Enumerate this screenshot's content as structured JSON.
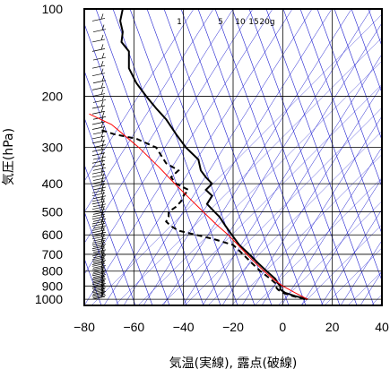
{
  "chart_data": {
    "type": "line",
    "title": "",
    "xlabel": "気温(実線), 露点(破線)",
    "ylabel": "気圧(hPa)",
    "xlim": [
      -80,
      40
    ],
    "ylim": [
      1050,
      100
    ],
    "y_scale": "log",
    "x_ticks": [
      -80,
      -60,
      -40,
      -20,
      0,
      20,
      40
    ],
    "y_ticks": [
      100,
      200,
      300,
      400,
      500,
      600,
      700,
      800,
      900,
      1000
    ],
    "mixing_ratio_labels": [
      "1",
      "5",
      "10",
      "15",
      "20g"
    ],
    "colors": {
      "isotherm": "#2020d0",
      "parcel": "#ff0000",
      "frame": "#000000"
    },
    "series": [
      {
        "style": "solid",
        "pressure": [
          1000,
          975,
          950,
          925,
          900,
          880,
          850,
          800,
          750,
          700,
          650,
          600,
          560,
          520,
          500,
          470,
          440,
          420,
          400,
          380,
          360,
          330,
          300,
          270,
          240,
          220,
          200,
          180,
          160,
          150,
          140,
          130,
          120,
          110,
          100
        ],
        "values": [
          10,
          5,
          1,
          -1,
          -1,
          -2,
          -3,
          -6.5,
          -10,
          -13.5,
          -17.5,
          -20.5,
          -23,
          -25.5,
          -27.5,
          -30.5,
          -28.5,
          -31,
          -28.5,
          -31,
          -33,
          -34,
          -39,
          -43,
          -47,
          -51,
          -55,
          -59,
          -62,
          -62,
          -62,
          -65,
          -64.5,
          -65.5,
          -64.5
        ]
      },
      {
        "style": "dashed",
        "pressure": [
          1000,
          975,
          950,
          925,
          900,
          880,
          850,
          800,
          750,
          700,
          650,
          620,
          600,
          580,
          560,
          540,
          520,
          500,
          480,
          460,
          440,
          420,
          400,
          380,
          360,
          340,
          320,
          300,
          280,
          270,
          260
        ],
        "values": [
          9,
          4,
          0,
          -2,
          -3,
          -3,
          -5,
          -9,
          -12.5,
          -16,
          -20,
          -28,
          -35,
          -42,
          -45,
          -47,
          -46,
          -46,
          -43,
          -41,
          -40,
          -38,
          -43,
          -45,
          -42,
          -47,
          -49,
          -51,
          -59,
          -68,
          -74
        ]
      },
      {
        "style": "thin-red",
        "pressure": [
          1000,
          950,
          900,
          850,
          800,
          750,
          700,
          650,
          600,
          550,
          500,
          450,
          400,
          350,
          300,
          250,
          230
        ],
        "values": [
          10,
          5,
          0,
          -4,
          -7.5,
          -11,
          -14.5,
          -18,
          -22,
          -27,
          -32,
          -37.5,
          -43.5,
          -50,
          -58,
          -69,
          -78
        ]
      }
    ]
  }
}
